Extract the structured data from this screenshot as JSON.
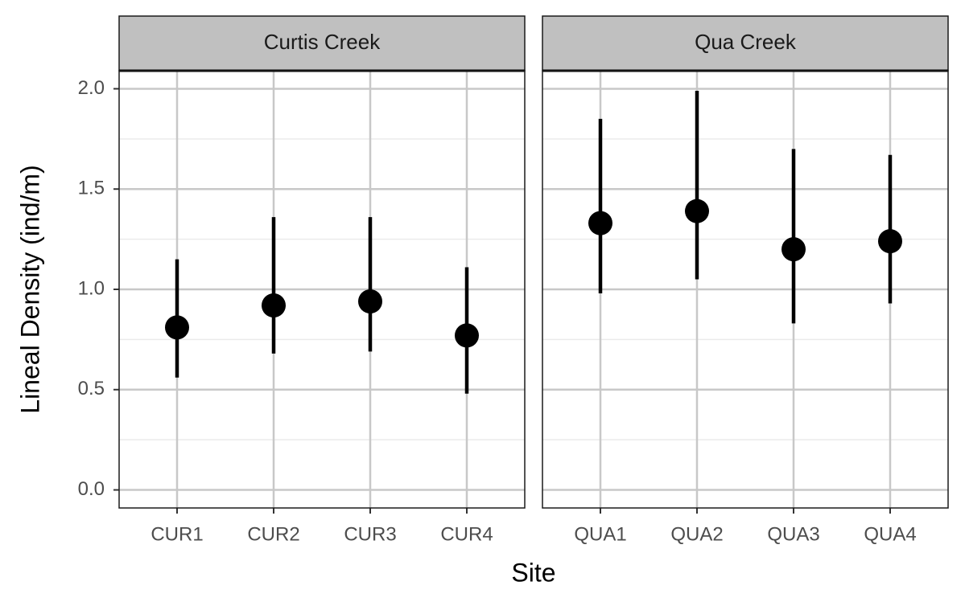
{
  "chart_data": {
    "type": "pointrange",
    "xlabel": "Site",
    "ylabel": "Lineal Density (ind/m)",
    "ylim": [
      -0.09,
      2.09
    ],
    "yticks": [
      {
        "value": 0,
        "label": "0.0"
      },
      0.5,
      {
        "value": 1,
        "label": "1.0"
      },
      1.5,
      {
        "value": 2,
        "label": "2.0"
      }
    ],
    "minor_yticks": [
      0.25,
      0.75,
      1.25,
      1.75
    ],
    "grid": true,
    "color": "#000000",
    "facets": [
      {
        "title": "Curtis Creek",
        "categories": [
          "CUR1",
          "CUR2",
          "CUR3",
          "CUR4"
        ],
        "values": [
          0.81,
          0.92,
          0.94,
          0.77
        ],
        "lower": [
          0.56,
          0.68,
          0.69,
          0.48
        ],
        "upper": [
          1.15,
          1.36,
          1.36,
          1.11
        ]
      },
      {
        "title": "Qua Creek",
        "categories": [
          "QUA1",
          "QUA2",
          "QUA3",
          "QUA4"
        ],
        "values": [
          1.33,
          1.39,
          1.2,
          1.24
        ],
        "lower": [
          0.98,
          1.05,
          0.83,
          0.93
        ],
        "upper": [
          1.85,
          1.99,
          1.7,
          1.67
        ]
      }
    ]
  }
}
